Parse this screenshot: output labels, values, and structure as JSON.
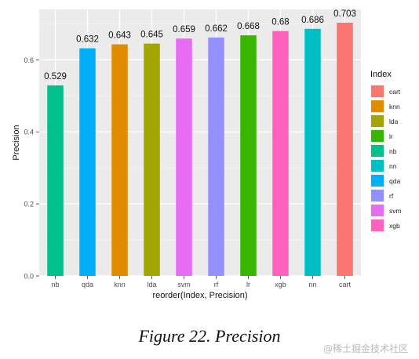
{
  "chart_data": {
    "type": "bar",
    "categories": [
      "nb",
      "qda",
      "knn",
      "lda",
      "svm",
      "rf",
      "lr",
      "xgb",
      "nn",
      "cart"
    ],
    "values": [
      0.529,
      0.632,
      0.643,
      0.645,
      0.659,
      0.662,
      0.668,
      0.68,
      0.686,
      0.703
    ],
    "data_labels": [
      "0.529",
      "0.632",
      "0.643",
      "0.645",
      "0.659",
      "0.662",
      "0.668",
      "0.68",
      "0.686",
      "0.703"
    ],
    "bar_colors": [
      "#00C08B",
      "#00B0F6",
      "#E08B00",
      "#A3A500",
      "#E76BF3",
      "#9590FF",
      "#39B600",
      "#FF62BC",
      "#00BFC4",
      "#F8766D"
    ],
    "xlabel": "reorder(Index, Precision)",
    "ylabel": "Precision",
    "ylim": [
      0,
      0.74
    ],
    "yticks": [
      0.0,
      0.2,
      0.4,
      0.6
    ],
    "ytick_labels": [
      "0.0",
      "0.2",
      "0.4",
      "0.6"
    ],
    "grid": true,
    "panel_background": "#EBEBEB",
    "legend": {
      "title": "Index",
      "placement": "right",
      "entries": [
        {
          "label": "cart",
          "color": "#F8766D"
        },
        {
          "label": "knn",
          "color": "#E08B00"
        },
        {
          "label": "lda",
          "color": "#A3A500"
        },
        {
          "label": "lr",
          "color": "#39B600"
        },
        {
          "label": "nb",
          "color": "#00C08B"
        },
        {
          "label": "nn",
          "color": "#00BFC4"
        },
        {
          "label": "qda",
          "color": "#00B0F6"
        },
        {
          "label": "rf",
          "color": "#9590FF"
        },
        {
          "label": "svm",
          "color": "#E76BF3"
        },
        {
          "label": "xgb",
          "color": "#FF62BC"
        }
      ]
    }
  },
  "caption": "Figure 22. Precision",
  "watermark": "@稀土掘金技术社区"
}
